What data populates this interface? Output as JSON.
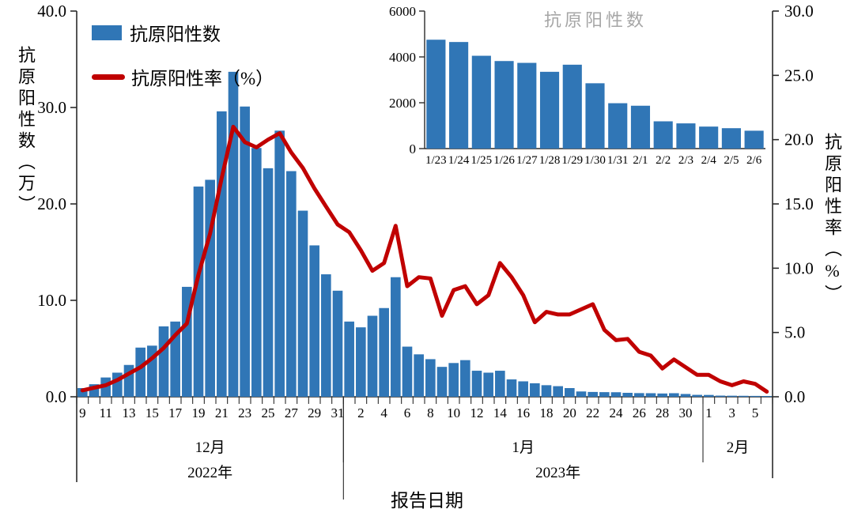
{
  "figure": {
    "x_title": "报告日期",
    "y_left_title": "抗原阳性数（万）",
    "y_right_title": "抗原阳性率（%）"
  },
  "legend": {
    "bars_label": "抗原阳性数",
    "line_label": "抗原阳性率（%）"
  },
  "colors": {
    "bar": "#3076B6",
    "line": "#C00000",
    "axis": "#2b2b2b",
    "inset_title": "#A6A6A6"
  },
  "chart_data": [
    {
      "type": "bar+line",
      "xlabel": "报告日期",
      "ylabel_left": "抗原阳性数（万）",
      "ylabel_right": "抗原阳性率（%）",
      "ylim_left": [
        0,
        40
      ],
      "ylim_right": [
        0,
        30
      ],
      "y_left_tick_values": [
        0,
        10,
        20,
        30,
        40
      ],
      "y_right_tick_values": [
        0,
        5,
        10,
        15,
        20,
        25,
        30
      ],
      "categories": [
        "12/9",
        "12/10",
        "12/11",
        "12/12",
        "12/13",
        "12/14",
        "12/15",
        "12/16",
        "12/17",
        "12/18",
        "12/19",
        "12/20",
        "12/21",
        "12/22",
        "12/23",
        "12/24",
        "12/25",
        "12/26",
        "12/27",
        "12/28",
        "12/29",
        "12/30",
        "12/31",
        "1/1",
        "1/2",
        "1/3",
        "1/4",
        "1/5",
        "1/6",
        "1/7",
        "1/8",
        "1/9",
        "1/10",
        "1/11",
        "1/12",
        "1/13",
        "1/14",
        "1/15",
        "1/16",
        "1/17",
        "1/18",
        "1/19",
        "1/20",
        "1/21",
        "1/22",
        "1/23",
        "1/24",
        "1/25",
        "1/26",
        "1/27",
        "1/28",
        "1/29",
        "1/30",
        "1/31",
        "2/1",
        "2/2",
        "2/3",
        "2/4",
        "2/5",
        "2/6"
      ],
      "day_labels": [
        "9",
        "",
        "11",
        "",
        "13",
        "",
        "15",
        "",
        "17",
        "",
        "19",
        "",
        "21",
        "",
        "23",
        "",
        "25",
        "",
        "27",
        "",
        "29",
        "",
        "31",
        "",
        "2",
        "",
        "4",
        "",
        "6",
        "",
        "8",
        "",
        "10",
        "",
        "12",
        "",
        "14",
        "",
        "16",
        "",
        "18",
        "",
        "20",
        "",
        "22",
        "",
        "24",
        "",
        "26",
        "",
        "28",
        "",
        "30",
        "",
        "1",
        "",
        "3",
        "",
        "5",
        ""
      ],
      "month_groups": [
        {
          "label": "12月",
          "start": 0,
          "end": 23
        },
        {
          "label": "1月",
          "start": 23,
          "end": 54
        },
        {
          "label": "2月",
          "start": 54,
          "end": 60
        }
      ],
      "year_groups": [
        {
          "label": "2022年",
          "start": 0,
          "end": 23
        },
        {
          "label": "2023年",
          "start": 23,
          "end": 60
        }
      ],
      "series": [
        {
          "name": "抗原阳性数",
          "type": "bar",
          "axis": "left",
          "values": [
            0.9,
            1.3,
            2.0,
            2.5,
            3.3,
            5.1,
            5.3,
            7.3,
            7.8,
            11.4,
            21.8,
            22.5,
            29.6,
            33.7,
            30.1,
            25.8,
            23.7,
            27.6,
            23.4,
            19.3,
            15.7,
            12.7,
            11.0,
            7.8,
            7.2,
            8.4,
            9.2,
            12.4,
            5.2,
            4.4,
            3.9,
            3.1,
            3.5,
            3.8,
            2.7,
            2.5,
            2.7,
            1.8,
            1.6,
            1.4,
            1.2,
            1.1,
            0.9,
            0.55,
            0.5,
            0.48,
            0.47,
            0.41,
            0.38,
            0.37,
            0.34,
            0.37,
            0.29,
            0.2,
            0.19,
            0.12,
            0.11,
            0.1,
            0.09,
            0.08
          ]
        },
        {
          "name": "抗原阳性率（%）",
          "type": "line",
          "axis": "right",
          "values": [
            0.5,
            0.7,
            0.9,
            1.3,
            1.8,
            2.3,
            3.0,
            3.8,
            4.8,
            5.7,
            9.5,
            12.7,
            17.0,
            21.0,
            19.8,
            19.4,
            20.0,
            20.5,
            19.0,
            17.8,
            16.2,
            14.8,
            13.4,
            12.8,
            11.4,
            9.8,
            10.4,
            13.3,
            8.6,
            9.3,
            9.2,
            6.3,
            8.3,
            8.6,
            7.2,
            7.9,
            10.4,
            9.3,
            7.9,
            5.8,
            6.6,
            6.4,
            6.4,
            6.8,
            7.2,
            5.2,
            4.4,
            4.5,
            3.5,
            3.2,
            2.2,
            2.9,
            2.3,
            1.7,
            1.7,
            1.2,
            0.9,
            1.2,
            1.0,
            0.4
          ]
        }
      ]
    },
    {
      "type": "bar",
      "title": "抗原阳性数",
      "ylim": [
        0,
        6000
      ],
      "y_tick_values": [
        0,
        2000,
        4000,
        6000
      ],
      "categories": [
        "1/23",
        "1/24",
        "1/25",
        "1/26",
        "1/27",
        "1/28",
        "1/29",
        "1/30",
        "1/31",
        "2/1",
        "2/2",
        "2/3",
        "2/4",
        "2/5",
        "2/6"
      ],
      "values": [
        4750,
        4650,
        4050,
        3820,
        3740,
        3350,
        3660,
        2850,
        1980,
        1870,
        1190,
        1100,
        960,
        890,
        780
      ]
    }
  ]
}
